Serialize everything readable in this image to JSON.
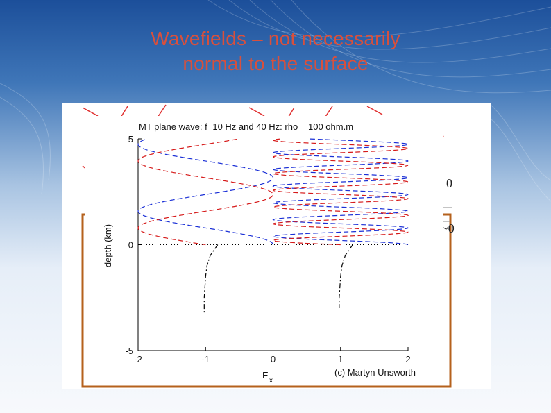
{
  "slide": {
    "title_line1": "Wavefields – not necessarily",
    "title_line2": "normal to the surface",
    "colors": {
      "title": "#d8503d",
      "background_top": "#1c4f9a",
      "background_bottom": "#f7f9fc"
    }
  },
  "figure": {
    "copyright": "(c) Martyn Unsworth",
    "side_labels": [
      "0",
      "~0"
    ],
    "accent_color": "#b5611c"
  },
  "chart_data": {
    "type": "line",
    "title": "MT plane wave: f=10 Hz and 40 Hz: rho = 100 ohm.m",
    "xlabel": "E",
    "xlabel_subscript": "x",
    "ylabel": "depth (km)",
    "xlim": [
      -2,
      2
    ],
    "ylim": [
      -5,
      5
    ],
    "xticks": [
      "-2",
      "-1",
      "0",
      "1",
      "2"
    ],
    "yticks": [
      "5",
      "0",
      "-5"
    ],
    "grid": false,
    "surface_line": {
      "depth": 0,
      "style": "dotted",
      "color": "#000000"
    },
    "series": [
      {
        "frequency_hz": 10,
        "offset": -1,
        "amplitude": 1,
        "wavelength_km": 3.16,
        "color": "#1a2fd6",
        "style": "dashed",
        "region": "air"
      },
      {
        "frequency_hz": 10,
        "offset": -1,
        "amplitude": 1,
        "wavelength_km": 3.16,
        "color": "#d61a1a",
        "style": "dashed",
        "region": "air",
        "phase_shift": 0.5
      },
      {
        "frequency_hz": 40,
        "offset": 1,
        "amplitude": 1,
        "wavelength_km": 0.79,
        "color": "#1a2fd6",
        "style": "dashed",
        "region": "air"
      },
      {
        "frequency_hz": 40,
        "offset": 1,
        "amplitude": 1,
        "wavelength_km": 0.79,
        "color": "#d61a1a",
        "style": "dashed",
        "region": "air",
        "phase_shift": 0.5
      },
      {
        "frequency_hz": 10,
        "offset": -1,
        "color": "#000000",
        "style": "dash-dot",
        "region": "earth",
        "depth_points": [
          0,
          -0.5,
          -1,
          -1.5,
          -2,
          -2.5,
          -3.2
        ],
        "values": [
          -0.82,
          -0.93,
          -0.98,
          -1.0,
          -1.01,
          -1.02,
          -1.02
        ]
      },
      {
        "frequency_hz": 40,
        "offset": 1,
        "color": "#000000",
        "style": "dash-dot",
        "region": "earth",
        "depth_points": [
          0,
          -0.5,
          -1,
          -1.5,
          -2,
          -2.5,
          -3.0
        ],
        "values": [
          1.18,
          1.07,
          1.02,
          1.0,
          0.99,
          0.98,
          0.98
        ]
      }
    ]
  }
}
